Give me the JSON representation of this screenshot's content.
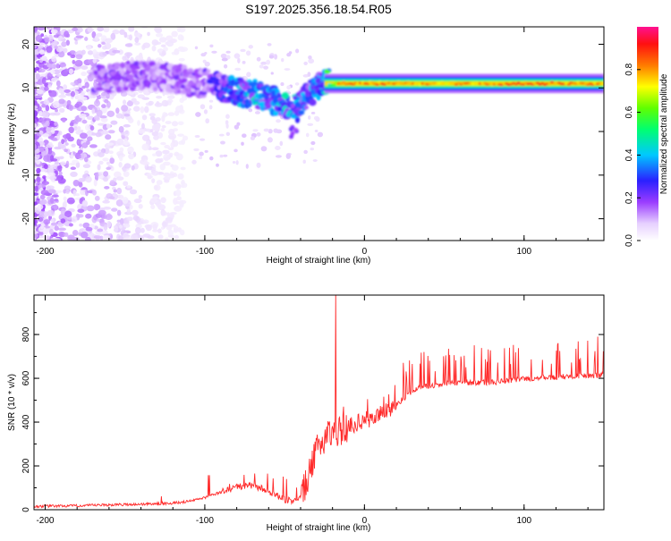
{
  "title": "S197.2025.356.18.54.R05",
  "chart_data": [
    {
      "type": "heatmap",
      "name": "spectrogram",
      "xlabel": "Height of straight line (km)",
      "ylabel": "Frequency (Hz)",
      "xlim": [
        -207,
        150
      ],
      "ylim": [
        -25,
        24
      ],
      "xticks": [
        -200,
        -100,
        0,
        100
      ],
      "yticks": [
        -20,
        -10,
        0,
        10,
        20
      ],
      "colorbar": {
        "label": "Normalized spectral amplitude",
        "range": [
          0,
          1
        ],
        "ticks": [
          0.0,
          0.2,
          0.4,
          0.6,
          0.8
        ],
        "colormap": "rainbow (violet-blue-cyan-green-yellow-red)"
      },
      "band_profile": [
        {
          "x": -165,
          "y": 12,
          "amp": 0.15
        },
        {
          "x": -140,
          "y": 13,
          "amp": 0.15
        },
        {
          "x": -120,
          "y": 12,
          "amp": 0.15
        },
        {
          "x": -100,
          "y": 11,
          "amp": 0.18
        },
        {
          "x": -90,
          "y": 10,
          "amp": 0.22
        },
        {
          "x": -80,
          "y": 9,
          "amp": 0.3
        },
        {
          "x": -70,
          "y": 9,
          "amp": 0.35
        },
        {
          "x": -62,
          "y": 8,
          "amp": 0.3
        },
        {
          "x": -55,
          "y": 7,
          "amp": 0.3
        },
        {
          "x": -48,
          "y": 5,
          "amp": 0.35
        },
        {
          "x": -40,
          "y": 6,
          "amp": 0.3
        },
        {
          "x": -33,
          "y": 9,
          "amp": 0.3
        },
        {
          "x": -25,
          "y": 11,
          "amp": 0.3
        },
        {
          "x": -15,
          "y": 11,
          "amp": 0.9
        },
        {
          "x": 0,
          "y": 11,
          "amp": 0.85
        },
        {
          "x": 20,
          "y": 11,
          "amp": 0.85
        },
        {
          "x": 50,
          "y": 11,
          "amp": 0.8
        },
        {
          "x": 80,
          "y": 11.5,
          "amp": 0.85
        },
        {
          "x": 100,
          "y": 11,
          "amp": 0.9
        },
        {
          "x": 130,
          "y": 11,
          "amp": 0.85
        },
        {
          "x": 150,
          "y": 11,
          "amp": 0.85
        }
      ],
      "isolated_features": [
        {
          "x": -45,
          "y": 0,
          "amp": 0.15
        }
      ]
    },
    {
      "type": "line",
      "name": "snr",
      "xlabel": "Height of straight line (km)",
      "ylabel": "SNR (10 * v/v)",
      "xlim": [
        -207,
        150
      ],
      "ylim": [
        0,
        980
      ],
      "xticks": [
        -200,
        -100,
        0,
        100
      ],
      "yticks": [
        0,
        200,
        400,
        600,
        800
      ],
      "color": "#ff2a2a",
      "series": [
        {
          "name": "SNR",
          "x": [
            -207,
            -180,
            -160,
            -140,
            -120,
            -110,
            -100,
            -90,
            -80,
            -72,
            -65,
            -58,
            -50,
            -45,
            -40,
            -35,
            -30,
            -25,
            -20,
            -15,
            -10,
            -5,
            0,
            5,
            10,
            15,
            20,
            25,
            30,
            35,
            40,
            45,
            50,
            60,
            70,
            80,
            90,
            100,
            110,
            120,
            130,
            140,
            150
          ],
          "y": [
            15,
            18,
            22,
            25,
            30,
            38,
            55,
            80,
            105,
            110,
            100,
            75,
            45,
            40,
            60,
            150,
            270,
            330,
            360,
            360,
            380,
            395,
            410,
            415,
            440,
            460,
            480,
            510,
            540,
            560,
            565,
            570,
            575,
            578,
            580,
            582,
            588,
            598,
            600,
            605,
            610,
            612,
            615
          ]
        }
      ],
      "spikes": [
        {
          "x": -18,
          "y": 980
        }
      ]
    }
  ]
}
